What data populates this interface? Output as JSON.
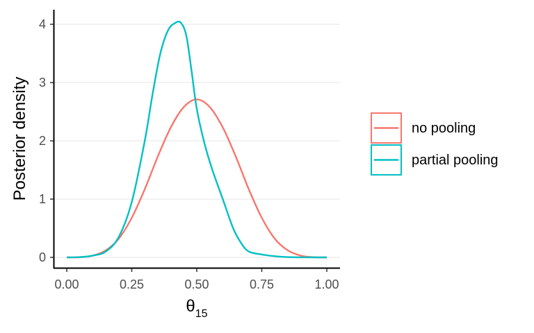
{
  "chart_data": {
    "type": "line",
    "title": "",
    "xlabel": "θ",
    "xlabel_sub": "15",
    "ylabel": "Posterior density",
    "xlim": [
      0,
      1
    ],
    "ylim": [
      0,
      4.2
    ],
    "x_ticks": [
      0,
      0.25,
      0.5,
      0.75,
      1
    ],
    "x_tick_labels": [
      "0.00",
      "0.25",
      "0.50",
      "0.75",
      "1.00"
    ],
    "y_ticks": [
      0,
      1,
      2,
      3,
      4
    ],
    "y_tick_labels": [
      "0",
      "1",
      "2",
      "3",
      "4"
    ],
    "grid": "horizontal major",
    "legend_position": "right",
    "series": [
      {
        "name": "no pooling",
        "color": "#F8766D",
        "x": [
          0,
          0.05,
          0.1,
          0.15,
          0.2,
          0.25,
          0.3,
          0.35,
          0.4,
          0.45,
          0.5,
          0.55,
          0.6,
          0.65,
          0.7,
          0.75,
          0.8,
          0.85,
          0.9,
          0.95,
          1.0
        ],
        "y": [
          0,
          0.003,
          0.03,
          0.12,
          0.32,
          0.68,
          1.17,
          1.73,
          2.23,
          2.58,
          2.71,
          2.58,
          2.23,
          1.73,
          1.17,
          0.68,
          0.32,
          0.12,
          0.03,
          0.003,
          0
        ]
      },
      {
        "name": "partial pooling",
        "color": "#00BFC4",
        "x": [
          0,
          0.05,
          0.1,
          0.15,
          0.2,
          0.25,
          0.3,
          0.33,
          0.36,
          0.39,
          0.42,
          0.44,
          0.46,
          0.48,
          0.5,
          0.53,
          0.56,
          0.6,
          0.64,
          0.67,
          0.7,
          0.75,
          0.8,
          0.85,
          0.9,
          0.95,
          1.0
        ],
        "y": [
          0,
          0.005,
          0.03,
          0.1,
          0.35,
          0.95,
          2.0,
          2.8,
          3.5,
          3.9,
          4.03,
          4.02,
          3.8,
          3.2,
          2.55,
          1.95,
          1.5,
          1.0,
          0.5,
          0.25,
          0.1,
          0.05,
          0.02,
          0.005,
          0.001,
          0,
          0
        ]
      }
    ]
  }
}
